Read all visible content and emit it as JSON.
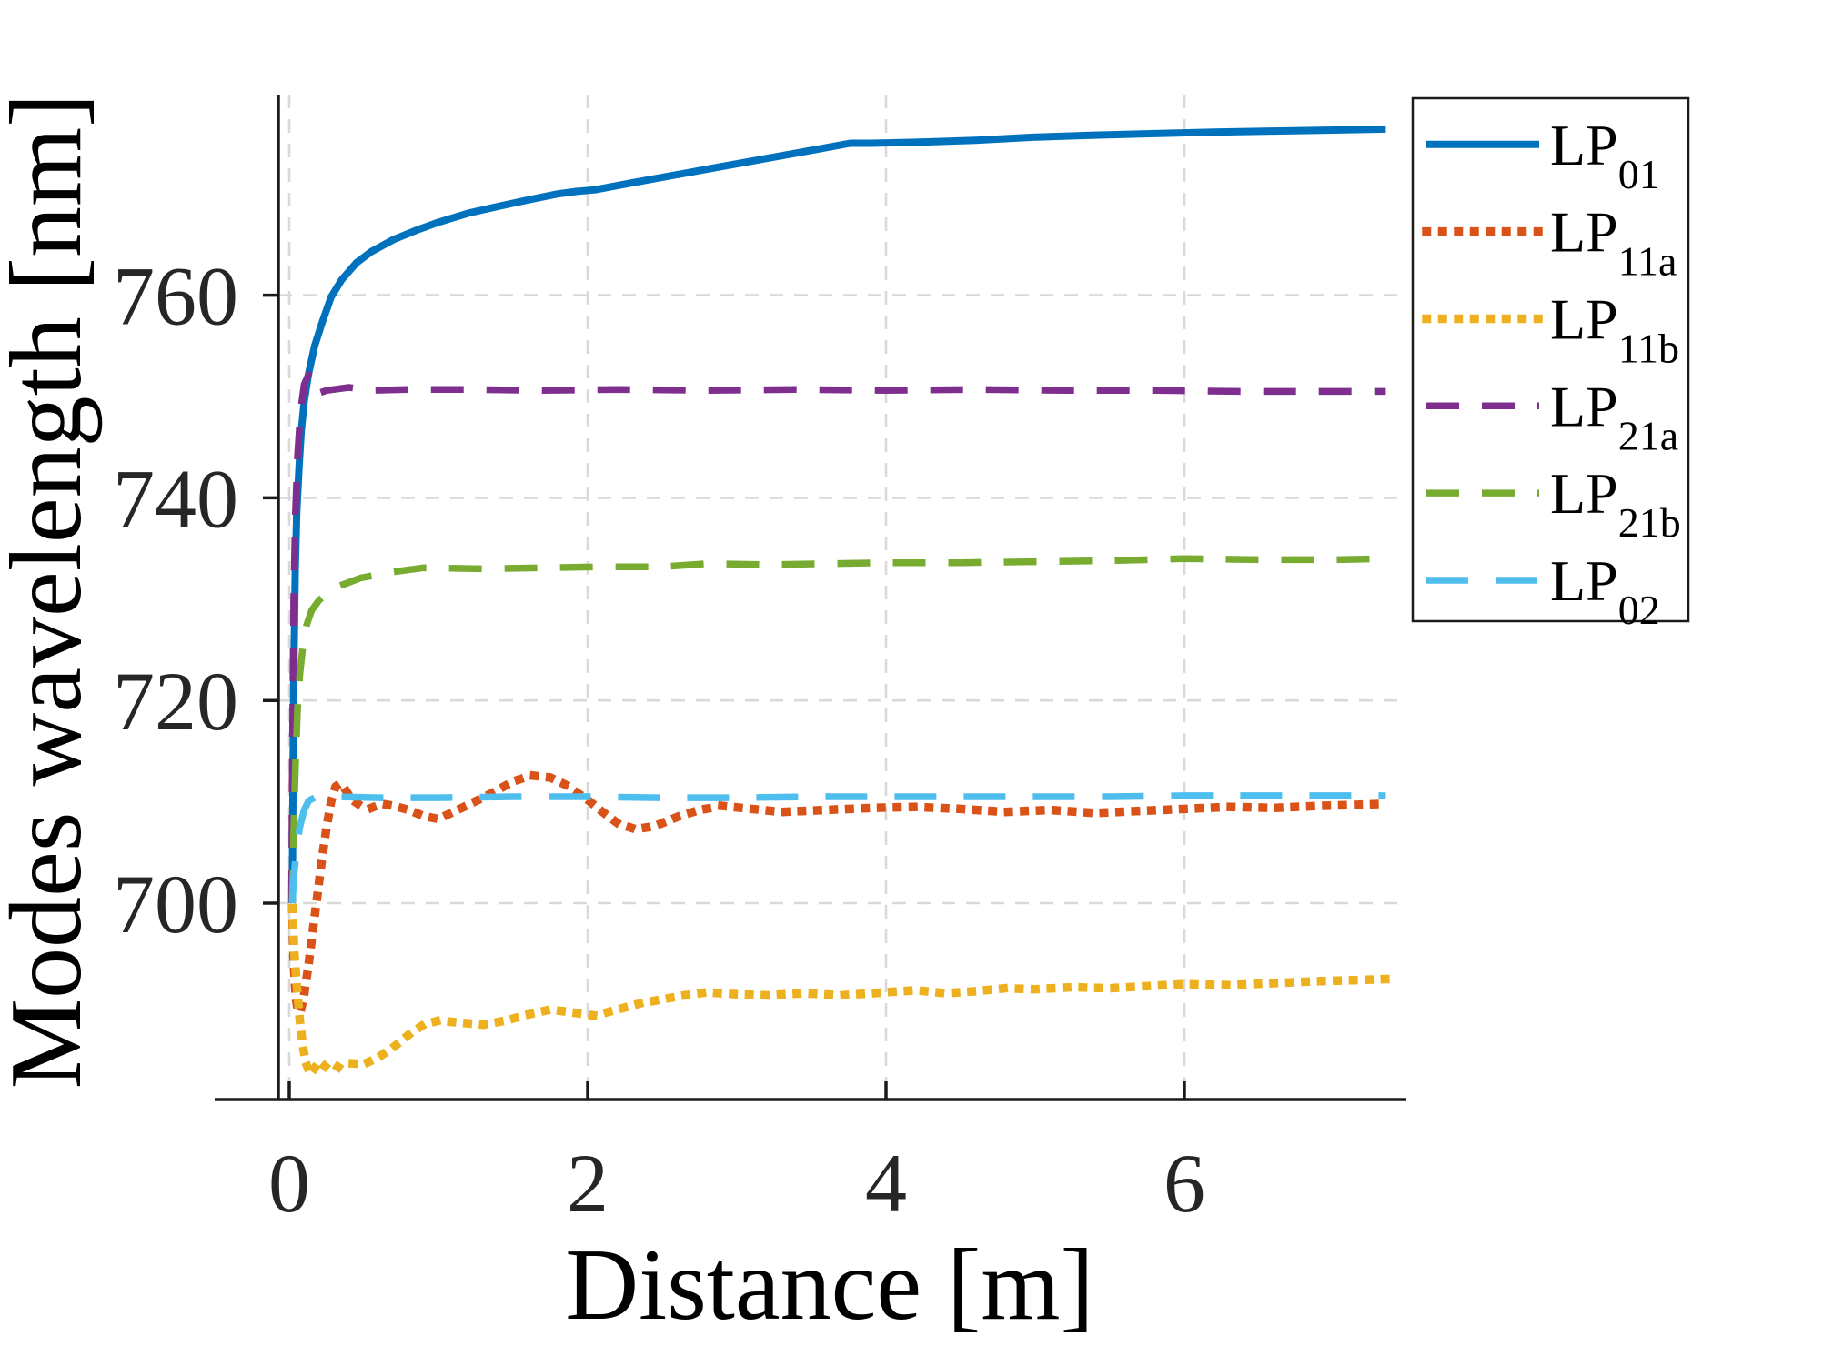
{
  "figure": {
    "title": "",
    "xlabel": "Distance [m]",
    "ylabel": "Modes wavelength [nm]"
  },
  "chart_data": {
    "type": "line",
    "title": "",
    "xlabel": "Distance [m]",
    "ylabel": "Modes wavelength [nm]",
    "xlim": [
      -0.45,
      7.49
    ],
    "ylim": [
      680,
      780
    ],
    "xticks": [
      0,
      2,
      4,
      6
    ],
    "yticks": [
      700,
      720,
      740,
      760
    ],
    "grid": true,
    "grid_color": "#d9d9d9",
    "axis_color": "#1a1a1a",
    "tick_label_color": "#262626",
    "background": "#ffffff",
    "legend_position": "upper-right-outside",
    "legend_border_color": "#1a1a1a",
    "series": [
      {
        "name": "LP01",
        "label_main": "LP",
        "label_sub": "01",
        "color": "#0072BD",
        "style": "solid",
        "points": [
          [
            0.02,
            700
          ],
          [
            0.025,
            712
          ],
          [
            0.03,
            722
          ],
          [
            0.04,
            733
          ],
          [
            0.05,
            738.5
          ],
          [
            0.065,
            743
          ],
          [
            0.08,
            746.5
          ],
          [
            0.1,
            749.5
          ],
          [
            0.13,
            752.3
          ],
          [
            0.17,
            755
          ],
          [
            0.22,
            757.3
          ],
          [
            0.28,
            759.8
          ],
          [
            0.35,
            761.5
          ],
          [
            0.45,
            763.2
          ],
          [
            0.55,
            764.3
          ],
          [
            0.7,
            765.5
          ],
          [
            0.85,
            766.4
          ],
          [
            1.0,
            767.2
          ],
          [
            1.2,
            768.1
          ],
          [
            1.41,
            768.8
          ],
          [
            1.6,
            769.4
          ],
          [
            1.8,
            770.0
          ],
          [
            1.93,
            770.25
          ],
          [
            2.05,
            770.4
          ],
          [
            2.3,
            771.1
          ],
          [
            2.6,
            771.9
          ],
          [
            2.9,
            772.7
          ],
          [
            3.2,
            773.5
          ],
          [
            3.5,
            774.3
          ],
          [
            3.76,
            775.0
          ],
          [
            3.9,
            775.0
          ],
          [
            4.2,
            775.1
          ],
          [
            4.6,
            775.3
          ],
          [
            5.0,
            775.6
          ],
          [
            5.4,
            775.8
          ],
          [
            5.8,
            775.95
          ],
          [
            6.2,
            776.1
          ],
          [
            6.6,
            776.2
          ],
          [
            7.0,
            776.3
          ],
          [
            7.35,
            776.4
          ]
        ]
      },
      {
        "name": "LP11a",
        "label_main": "LP",
        "label_sub": "11a",
        "color": "#D95319",
        "style": "dotted",
        "points": [
          [
            0.02,
            699.5
          ],
          [
            0.03,
            694
          ],
          [
            0.045,
            690.5
          ],
          [
            0.06,
            689.2
          ],
          [
            0.08,
            689.6
          ],
          [
            0.1,
            691
          ],
          [
            0.13,
            694
          ],
          [
            0.16,
            697.5
          ],
          [
            0.19,
            701
          ],
          [
            0.22,
            704.5
          ],
          [
            0.25,
            707.5
          ],
          [
            0.28,
            710
          ],
          [
            0.31,
            711.5
          ],
          [
            0.34,
            711.8
          ],
          [
            0.38,
            711.1
          ],
          [
            0.42,
            710.2
          ],
          [
            0.47,
            709.7
          ],
          [
            0.55,
            709.4
          ],
          [
            0.62,
            709.8
          ],
          [
            0.7,
            709.6
          ],
          [
            0.8,
            709.2
          ],
          [
            0.9,
            708.6
          ],
          [
            1.0,
            708.3
          ],
          [
            1.1,
            709.0
          ],
          [
            1.2,
            709.7
          ],
          [
            1.35,
            710.8
          ],
          [
            1.5,
            712.0
          ],
          [
            1.62,
            712.6
          ],
          [
            1.75,
            712.4
          ],
          [
            1.85,
            711.7
          ],
          [
            2.0,
            710.2
          ],
          [
            2.1,
            709.0
          ],
          [
            2.2,
            707.9
          ],
          [
            2.32,
            707.3
          ],
          [
            2.45,
            707.6
          ],
          [
            2.6,
            708.5
          ],
          [
            2.75,
            709.2
          ],
          [
            2.9,
            709.6
          ],
          [
            3.1,
            709.3
          ],
          [
            3.3,
            709.0
          ],
          [
            3.6,
            709.2
          ],
          [
            3.9,
            709.4
          ],
          [
            4.2,
            709.5
          ],
          [
            4.5,
            709.3
          ],
          [
            4.8,
            709.0
          ],
          [
            5.1,
            709.2
          ],
          [
            5.4,
            708.9
          ],
          [
            5.7,
            709.1
          ],
          [
            6.0,
            709.3
          ],
          [
            6.3,
            709.5
          ],
          [
            6.6,
            709.4
          ],
          [
            6.9,
            709.6
          ],
          [
            7.15,
            709.7
          ],
          [
            7.35,
            709.8
          ]
        ]
      },
      {
        "name": "LP11b",
        "label_main": "LP",
        "label_sub": "11b",
        "color": "#EDB120",
        "style": "dotted",
        "points": [
          [
            0.02,
            699.5
          ],
          [
            0.035,
            695
          ],
          [
            0.05,
            692
          ],
          [
            0.07,
            688.5
          ],
          [
            0.09,
            686
          ],
          [
            0.11,
            684.3
          ],
          [
            0.14,
            683.1
          ],
          [
            0.17,
            683.7
          ],
          [
            0.2,
            684.4
          ],
          [
            0.24,
            683.9
          ],
          [
            0.28,
            684.3
          ],
          [
            0.33,
            683.8
          ],
          [
            0.4,
            684.2
          ],
          [
            0.5,
            684.1
          ],
          [
            0.6,
            684.8
          ],
          [
            0.7,
            685.8
          ],
          [
            0.8,
            687.0
          ],
          [
            0.9,
            688.0
          ],
          [
            1.0,
            688.4
          ],
          [
            1.15,
            688.2
          ],
          [
            1.3,
            688.0
          ],
          [
            1.45,
            688.4
          ],
          [
            1.6,
            689.0
          ],
          [
            1.75,
            689.5
          ],
          [
            1.9,
            689.2
          ],
          [
            2.05,
            688.9
          ],
          [
            2.2,
            689.5
          ],
          [
            2.35,
            690.1
          ],
          [
            2.5,
            690.5
          ],
          [
            2.65,
            690.9
          ],
          [
            2.8,
            691.2
          ],
          [
            3.0,
            691.0
          ],
          [
            3.2,
            690.9
          ],
          [
            3.45,
            691.1
          ],
          [
            3.7,
            690.9
          ],
          [
            4.0,
            691.2
          ],
          [
            4.2,
            691.4
          ],
          [
            4.4,
            691.1
          ],
          [
            4.6,
            691.3
          ],
          [
            4.8,
            691.6
          ],
          [
            5.0,
            691.5
          ],
          [
            5.25,
            691.7
          ],
          [
            5.5,
            691.6
          ],
          [
            5.75,
            691.8
          ],
          [
            6.0,
            692.0
          ],
          [
            6.3,
            691.9
          ],
          [
            6.6,
            692.1
          ],
          [
            6.9,
            692.3
          ],
          [
            7.15,
            692.4
          ],
          [
            7.35,
            692.5
          ]
        ]
      },
      {
        "name": "LP21a",
        "label_main": "LP",
        "label_sub": "21a",
        "color": "#7E2F8E",
        "style": "dashed",
        "points": [
          [
            0.015,
            700
          ],
          [
            0.02,
            712
          ],
          [
            0.025,
            722
          ],
          [
            0.03,
            730
          ],
          [
            0.04,
            738
          ],
          [
            0.055,
            744
          ],
          [
            0.075,
            748.5
          ],
          [
            0.1,
            751.2
          ],
          [
            0.13,
            752.2
          ],
          [
            0.16,
            751.1
          ],
          [
            0.19,
            750.3
          ],
          [
            0.25,
            750.6
          ],
          [
            0.4,
            750.9
          ],
          [
            0.55,
            750.6
          ],
          [
            0.8,
            750.7
          ],
          [
            1.2,
            750.7
          ],
          [
            1.7,
            750.6
          ],
          [
            2.2,
            750.7
          ],
          [
            2.8,
            750.6
          ],
          [
            3.4,
            750.7
          ],
          [
            4.0,
            750.6
          ],
          [
            4.6,
            750.7
          ],
          [
            5.2,
            750.6
          ],
          [
            5.8,
            750.6
          ],
          [
            6.4,
            750.5
          ],
          [
            7.0,
            750.5
          ],
          [
            7.35,
            750.5
          ]
        ]
      },
      {
        "name": "LP21b",
        "label_main": "LP",
        "label_sub": "21b",
        "color": "#77AC30",
        "style": "dashed",
        "points": [
          [
            0.02,
            700
          ],
          [
            0.03,
            707
          ],
          [
            0.04,
            713
          ],
          [
            0.055,
            719
          ],
          [
            0.07,
            722.5
          ],
          [
            0.09,
            725.2
          ],
          [
            0.115,
            727.4
          ],
          [
            0.15,
            728.9
          ],
          [
            0.2,
            729.9
          ],
          [
            0.3,
            731.1
          ],
          [
            0.48,
            732.1
          ],
          [
            0.7,
            732.7
          ],
          [
            0.9,
            733.1
          ],
          [
            1.3,
            733.0
          ],
          [
            1.7,
            733.1
          ],
          [
            2.1,
            733.2
          ],
          [
            2.5,
            733.2
          ],
          [
            2.8,
            733.5
          ],
          [
            3.2,
            733.4
          ],
          [
            3.6,
            733.5
          ],
          [
            4.0,
            733.6
          ],
          [
            4.5,
            733.6
          ],
          [
            5.0,
            733.7
          ],
          [
            5.5,
            733.8
          ],
          [
            6.0,
            734.0
          ],
          [
            6.5,
            733.9
          ],
          [
            7.0,
            733.9
          ],
          [
            7.35,
            734.0
          ]
        ]
      },
      {
        "name": "LP02",
        "label_main": "LP",
        "label_sub": "02",
        "color": "#4DBEEE",
        "style": "dashed-long",
        "points": [
          [
            0.02,
            700
          ],
          [
            0.03,
            702.5
          ],
          [
            0.05,
            705.5
          ],
          [
            0.07,
            707.5
          ],
          [
            0.1,
            709.2
          ],
          [
            0.13,
            710.1
          ],
          [
            0.18,
            710.5
          ],
          [
            0.3,
            710.5
          ],
          [
            0.6,
            710.4
          ],
          [
            1.0,
            710.4
          ],
          [
            1.5,
            710.5
          ],
          [
            2.0,
            710.5
          ],
          [
            2.5,
            710.4
          ],
          [
            3.0,
            710.4
          ],
          [
            3.5,
            710.5
          ],
          [
            4.0,
            710.5
          ],
          [
            4.5,
            710.5
          ],
          [
            5.0,
            710.5
          ],
          [
            5.5,
            710.5
          ],
          [
            6.0,
            710.6
          ],
          [
            6.5,
            710.6
          ],
          [
            7.0,
            710.6
          ],
          [
            7.35,
            710.6
          ]
        ]
      }
    ]
  }
}
